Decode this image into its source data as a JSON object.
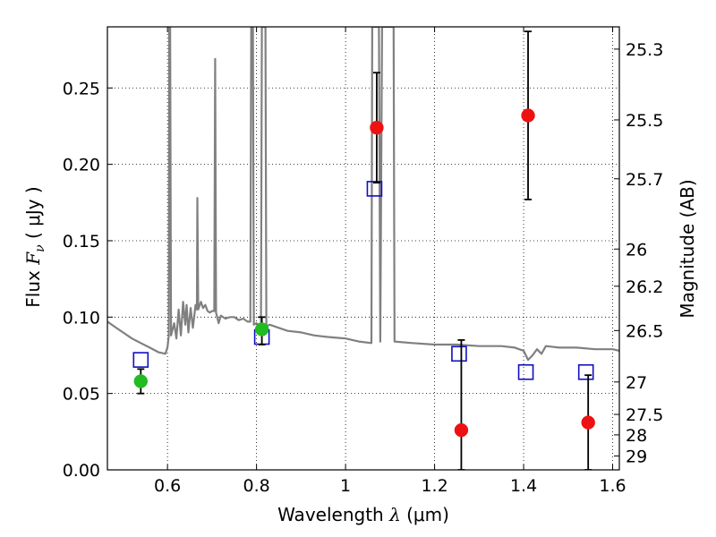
{
  "chart_data": {
    "type": "scatter",
    "xlabel_text": "Wavelength",
    "xlabel_symbol": "λ",
    "xlabel_unit": "(μm)",
    "ylabel_text": "Flux",
    "ylabel_symbol": "F",
    "ylabel_sub": "ν",
    "ylabel_unit": "( μJy )",
    "y2label": "Magnitude (AB)",
    "xlim": [
      0.465,
      1.615
    ],
    "ylim": [
      0.0,
      0.29
    ],
    "xticks": [
      0.6,
      0.8,
      1.0,
      1.2,
      1.4,
      1.6
    ],
    "xtick_labels": [
      "0.6",
      "0.8",
      "1",
      "1.2",
      "1.4",
      "1.6"
    ],
    "yticks": [
      0.0,
      0.05,
      0.1,
      0.15,
      0.2,
      0.25
    ],
    "ytick_labels": [
      "0.00",
      "0.05",
      "0.10",
      "0.15",
      "0.20",
      "0.25"
    ],
    "y2ticks": [
      {
        "mag": 25.3,
        "label": "25.3"
      },
      {
        "mag": 25.5,
        "label": "25.5"
      },
      {
        "mag": 25.7,
        "label": "25.7"
      },
      {
        "mag": 26.0,
        "label": "26"
      },
      {
        "mag": 26.2,
        "label": "26.2"
      },
      {
        "mag": 26.5,
        "label": "26.5"
      },
      {
        "mag": 27.0,
        "label": "27"
      },
      {
        "mag": 27.5,
        "label": "27.5"
      },
      {
        "mag": 28.0,
        "label": "28"
      },
      {
        "mag": 29.0,
        "label": "29"
      }
    ],
    "grid": true,
    "grid_style": "dotted",
    "series": [
      {
        "kind": "line",
        "color": "#808080",
        "points": [
          [
            0.465,
            0.097
          ],
          [
            0.48,
            0.094
          ],
          [
            0.5,
            0.09
          ],
          [
            0.52,
            0.086
          ],
          [
            0.54,
            0.083
          ],
          [
            0.56,
            0.08
          ],
          [
            0.58,
            0.077
          ],
          [
            0.595,
            0.076
          ],
          [
            0.6,
            0.08
          ],
          [
            0.603,
            0.088
          ],
          [
            0.604,
            0.29
          ],
          [
            0.606,
            0.29
          ],
          [
            0.608,
            0.088
          ],
          [
            0.615,
            0.096
          ],
          [
            0.62,
            0.086
          ],
          [
            0.625,
            0.105
          ],
          [
            0.63,
            0.088
          ],
          [
            0.635,
            0.11
          ],
          [
            0.64,
            0.095
          ],
          [
            0.643,
            0.108
          ],
          [
            0.647,
            0.09
          ],
          [
            0.652,
            0.106
          ],
          [
            0.657,
            0.093
          ],
          [
            0.663,
            0.108
          ],
          [
            0.666,
            0.105
          ],
          [
            0.667,
            0.178
          ],
          [
            0.669,
            0.105
          ],
          [
            0.675,
            0.11
          ],
          [
            0.68,
            0.106
          ],
          [
            0.685,
            0.108
          ],
          [
            0.69,
            0.104
          ],
          [
            0.695,
            0.103
          ],
          [
            0.7,
            0.104
          ],
          [
            0.705,
            0.104
          ],
          [
            0.707,
            0.269
          ],
          [
            0.709,
            0.103
          ],
          [
            0.715,
            0.096
          ],
          [
            0.72,
            0.101
          ],
          [
            0.73,
            0.099
          ],
          [
            0.74,
            0.1
          ],
          [
            0.75,
            0.1
          ],
          [
            0.76,
            0.098
          ],
          [
            0.77,
            0.099
          ],
          [
            0.78,
            0.097
          ],
          [
            0.786,
            0.097
          ],
          [
            0.788,
            0.29
          ],
          [
            0.792,
            0.29
          ],
          [
            0.794,
            0.095
          ],
          [
            0.8,
            0.096
          ],
          [
            0.81,
            0.094
          ],
          [
            0.812,
            0.29
          ],
          [
            0.82,
            0.29
          ],
          [
            0.822,
            0.094
          ],
          [
            0.83,
            0.095
          ],
          [
            0.85,
            0.093
          ],
          [
            0.87,
            0.091
          ],
          [
            0.9,
            0.09
          ],
          [
            0.93,
            0.088
          ],
          [
            0.96,
            0.087
          ],
          [
            1.0,
            0.086
          ],
          [
            1.03,
            0.084
          ],
          [
            1.058,
            0.083
          ],
          [
            1.06,
            0.29
          ],
          [
            1.075,
            0.29
          ],
          [
            1.078,
            0.084
          ],
          [
            1.082,
            0.29
          ],
          [
            1.095,
            0.29
          ],
          [
            1.1,
            0.29
          ],
          [
            1.108,
            0.29
          ],
          [
            1.11,
            0.084
          ],
          [
            1.15,
            0.083
          ],
          [
            1.2,
            0.082
          ],
          [
            1.25,
            0.082
          ],
          [
            1.3,
            0.081
          ],
          [
            1.35,
            0.081
          ],
          [
            1.38,
            0.08
          ],
          [
            1.4,
            0.078
          ],
          [
            1.41,
            0.072
          ],
          [
            1.42,
            0.075
          ],
          [
            1.43,
            0.079
          ],
          [
            1.44,
            0.076
          ],
          [
            1.45,
            0.081
          ],
          [
            1.48,
            0.08
          ],
          [
            1.52,
            0.08
          ],
          [
            1.56,
            0.079
          ],
          [
            1.6,
            0.079
          ],
          [
            1.615,
            0.078
          ]
        ]
      },
      {
        "kind": "points",
        "marker": "open-square",
        "color": "#1010c0",
        "points": [
          [
            0.54,
            0.072
          ],
          [
            0.812,
            0.087
          ],
          [
            1.065,
            0.184
          ],
          [
            1.255,
            0.076
          ],
          [
            1.405,
            0.064
          ],
          [
            1.54,
            0.064
          ]
        ]
      },
      {
        "kind": "points",
        "marker": "filled-circle",
        "color": "#22bb22",
        "points": [
          {
            "x": 0.54,
            "y": 0.058,
            "err_lo": 0.05,
            "err_hi": 0.066
          },
          {
            "x": 0.812,
            "y": 0.092,
            "err_lo": 0.082,
            "err_hi": 0.1
          }
        ]
      },
      {
        "kind": "points",
        "marker": "filled-circle",
        "color": "#ee1111",
        "points": [
          {
            "x": 1.07,
            "y": 0.224,
            "err_lo": 0.188,
            "err_hi": 0.26
          },
          {
            "x": 1.26,
            "y": 0.026,
            "err_lo": 0.0,
            "err_hi": 0.085
          },
          {
            "x": 1.41,
            "y": 0.232,
            "err_lo": 0.177,
            "err_hi": 0.287
          },
          {
            "x": 1.545,
            "y": 0.031,
            "err_lo": 0.0,
            "err_hi": 0.062
          }
        ]
      }
    ]
  }
}
